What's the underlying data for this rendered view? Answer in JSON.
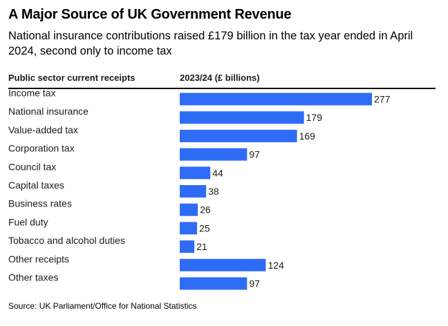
{
  "title": "A Major Source of UK Government Revenue",
  "subtitle": "National insurance contributions raised £179 billion in the tax year ended in April 2024, second only to income tax",
  "table_headers": {
    "category": "Public sector current receipts",
    "value": "2023/24 (£ billions)"
  },
  "source": "Source: UK Parliament/Office for National Statistics",
  "colors": {
    "bar": "#2f6cf6",
    "label": "#1a1a1a"
  },
  "chart_data": {
    "type": "bar",
    "orientation": "horizontal",
    "title": "A Major Source of UK Government Revenue",
    "subtitle": "National insurance contributions raised £179 billion in the tax year ended in April 2024, second only to income tax",
    "xlabel": "2023/24 (£ billions)",
    "ylabel": "Public sector current receipts",
    "categories": [
      "Income tax",
      "National insurance",
      "Value-added tax",
      "Corporation tax",
      "Council tax",
      "Capital taxes",
      "Business rates",
      "Fuel duty",
      "Tobacco and alcohol duties",
      "Other receipts",
      "Other taxes"
    ],
    "values": [
      277,
      179,
      169,
      97,
      44,
      38,
      26,
      25,
      21,
      124,
      97
    ],
    "xlim": [
      0,
      277
    ],
    "grid": false,
    "legend": "none"
  }
}
